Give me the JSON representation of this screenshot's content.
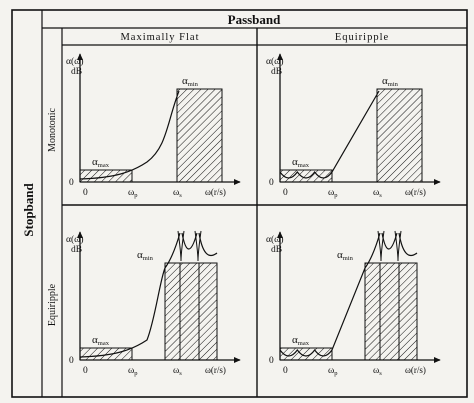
{
  "table": {
    "column_header": "Passband",
    "row_header": "Stopband",
    "columns": [
      "Maximally Flat",
      "Equiripple"
    ],
    "rows": [
      "Monotonic",
      "Equiripple"
    ]
  },
  "axes": {
    "y_label_top": "α(ω)",
    "y_label_bottom": "dB",
    "x_label": "ω(r/s)",
    "origin_y": "0",
    "origin_x": "0",
    "passband_edge_main": "ω",
    "passband_edge_sub": "p",
    "stopband_edge_main": "ω",
    "stopband_edge_sub": "s",
    "alpha_main": "α",
    "alpha_max_sub": "max",
    "alpha_min_sub": "min"
  },
  "colors": {
    "background": "#f4f3ef",
    "ink": "#111111"
  }
}
